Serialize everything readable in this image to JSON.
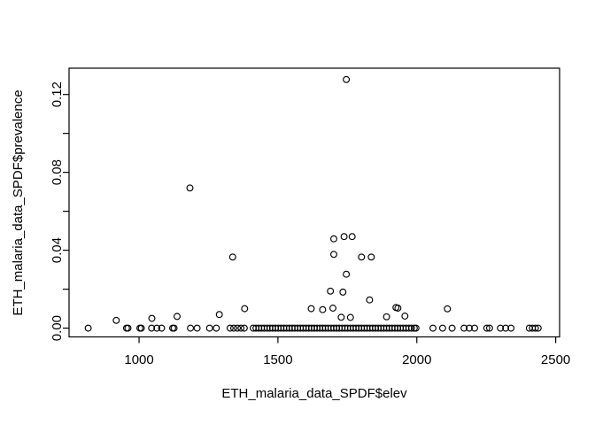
{
  "figure": {
    "background": "#ffffff",
    "foreground": "#000000"
  },
  "chart_data": {
    "type": "scatter",
    "title": "",
    "xlabel": "ETH_malaria_data_SPDF$elev",
    "ylabel": "ETH_malaria_data_SPDF$prevalence",
    "xlim": [
      748,
      2514
    ],
    "ylim": [
      -0.0045,
      0.1335
    ],
    "grid": false,
    "legend": null,
    "marker": {
      "shape": "open-circle",
      "color": "#000000",
      "radius_px": 3.4
    },
    "x_ticks": [
      {
        "value": 1000,
        "label": "1000"
      },
      {
        "value": 1500,
        "label": "1500"
      },
      {
        "value": 2000,
        "label": "2000"
      },
      {
        "value": 2500,
        "label": "2500"
      }
    ],
    "y_ticks": [
      {
        "value": 0.0,
        "label": "0.00"
      },
      {
        "value": 0.02,
        "label": ""
      },
      {
        "value": 0.04,
        "label": "0.04"
      },
      {
        "value": 0.06,
        "label": ""
      },
      {
        "value": 0.08,
        "label": "0.08"
      },
      {
        "value": 0.1,
        "label": ""
      },
      {
        "value": 0.12,
        "label": "0.12"
      }
    ],
    "points": [
      [
        817,
        0
      ],
      [
        918,
        0.004
      ],
      [
        955,
        0
      ],
      [
        960,
        0
      ],
      [
        1003,
        0
      ],
      [
        1008,
        0
      ],
      [
        1045,
        0
      ],
      [
        1046,
        0.005
      ],
      [
        1064,
        0
      ],
      [
        1081,
        0
      ],
      [
        1121,
        0
      ],
      [
        1126,
        0
      ],
      [
        1137,
        0.006
      ],
      [
        1183,
        0.072
      ],
      [
        1185,
        0
      ],
      [
        1209,
        0
      ],
      [
        1254,
        0
      ],
      [
        1278,
        0
      ],
      [
        1289,
        0.007
      ],
      [
        1328,
        0
      ],
      [
        1337,
        0.0365
      ],
      [
        1341,
        0
      ],
      [
        1354,
        0
      ],
      [
        1367,
        0
      ],
      [
        1379,
        0
      ],
      [
        1380,
        0.01
      ],
      [
        1411,
        0
      ],
      [
        1421,
        0
      ],
      [
        1431,
        0
      ],
      [
        1441,
        0
      ],
      [
        1451,
        0
      ],
      [
        1461,
        0
      ],
      [
        1471,
        0
      ],
      [
        1481,
        0
      ],
      [
        1491,
        0
      ],
      [
        1501,
        0
      ],
      [
        1511,
        0
      ],
      [
        1521,
        0
      ],
      [
        1531,
        0
      ],
      [
        1541,
        0
      ],
      [
        1551,
        0
      ],
      [
        1561,
        0
      ],
      [
        1571,
        0
      ],
      [
        1581,
        0
      ],
      [
        1591,
        0
      ],
      [
        1601,
        0
      ],
      [
        1611,
        0
      ],
      [
        1621,
        0
      ],
      [
        1631,
        0
      ],
      [
        1641,
        0
      ],
      [
        1651,
        0
      ],
      [
        1661,
        0
      ],
      [
        1671,
        0
      ],
      [
        1681,
        0
      ],
      [
        1691,
        0
      ],
      [
        1701,
        0
      ],
      [
        1711,
        0
      ],
      [
        1721,
        0
      ],
      [
        1731,
        0
      ],
      [
        1741,
        0
      ],
      [
        1751,
        0
      ],
      [
        1761,
        0
      ],
      [
        1771,
        0
      ],
      [
        1781,
        0
      ],
      [
        1791,
        0
      ],
      [
        1801,
        0
      ],
      [
        1811,
        0
      ],
      [
        1821,
        0
      ],
      [
        1831,
        0
      ],
      [
        1841,
        0
      ],
      [
        1851,
        0
      ],
      [
        1861,
        0
      ],
      [
        1871,
        0
      ],
      [
        1881,
        0
      ],
      [
        1891,
        0
      ],
      [
        1901,
        0
      ],
      [
        1911,
        0
      ],
      [
        1921,
        0
      ],
      [
        1931,
        0
      ],
      [
        1941,
        0
      ],
      [
        1951,
        0
      ],
      [
        1961,
        0
      ],
      [
        1971,
        0
      ],
      [
        1981,
        0
      ],
      [
        1991,
        0
      ],
      [
        1997,
        0
      ],
      [
        1620,
        0.01
      ],
      [
        1661,
        0.0095
      ],
      [
        1689,
        0.019
      ],
      [
        1698,
        0.0103
      ],
      [
        1701,
        0.0459
      ],
      [
        1701,
        0.0379
      ],
      [
        1728,
        0.0056
      ],
      [
        1734,
        0.0185
      ],
      [
        1738,
        0.047
      ],
      [
        1746,
        0.1277
      ],
      [
        1746,
        0.0277
      ],
      [
        1761,
        0.0055
      ],
      [
        1767,
        0.047
      ],
      [
        1801,
        0.0365
      ],
      [
        1830,
        0.0145
      ],
      [
        1836,
        0.0365
      ],
      [
        1891,
        0.0058
      ],
      [
        1925,
        0.0106
      ],
      [
        1932,
        0.0103
      ],
      [
        1957,
        0.0062
      ],
      [
        2058,
        0
      ],
      [
        2093,
        0
      ],
      [
        2110,
        0.0099
      ],
      [
        2127,
        0
      ],
      [
        2170,
        0
      ],
      [
        2189,
        0
      ],
      [
        2208,
        0
      ],
      [
        2252,
        0
      ],
      [
        2262,
        0
      ],
      [
        2301,
        0
      ],
      [
        2320,
        0
      ],
      [
        2339,
        0
      ],
      [
        2405,
        0
      ],
      [
        2416,
        0
      ],
      [
        2427,
        0
      ],
      [
        2437,
        0
      ]
    ]
  }
}
